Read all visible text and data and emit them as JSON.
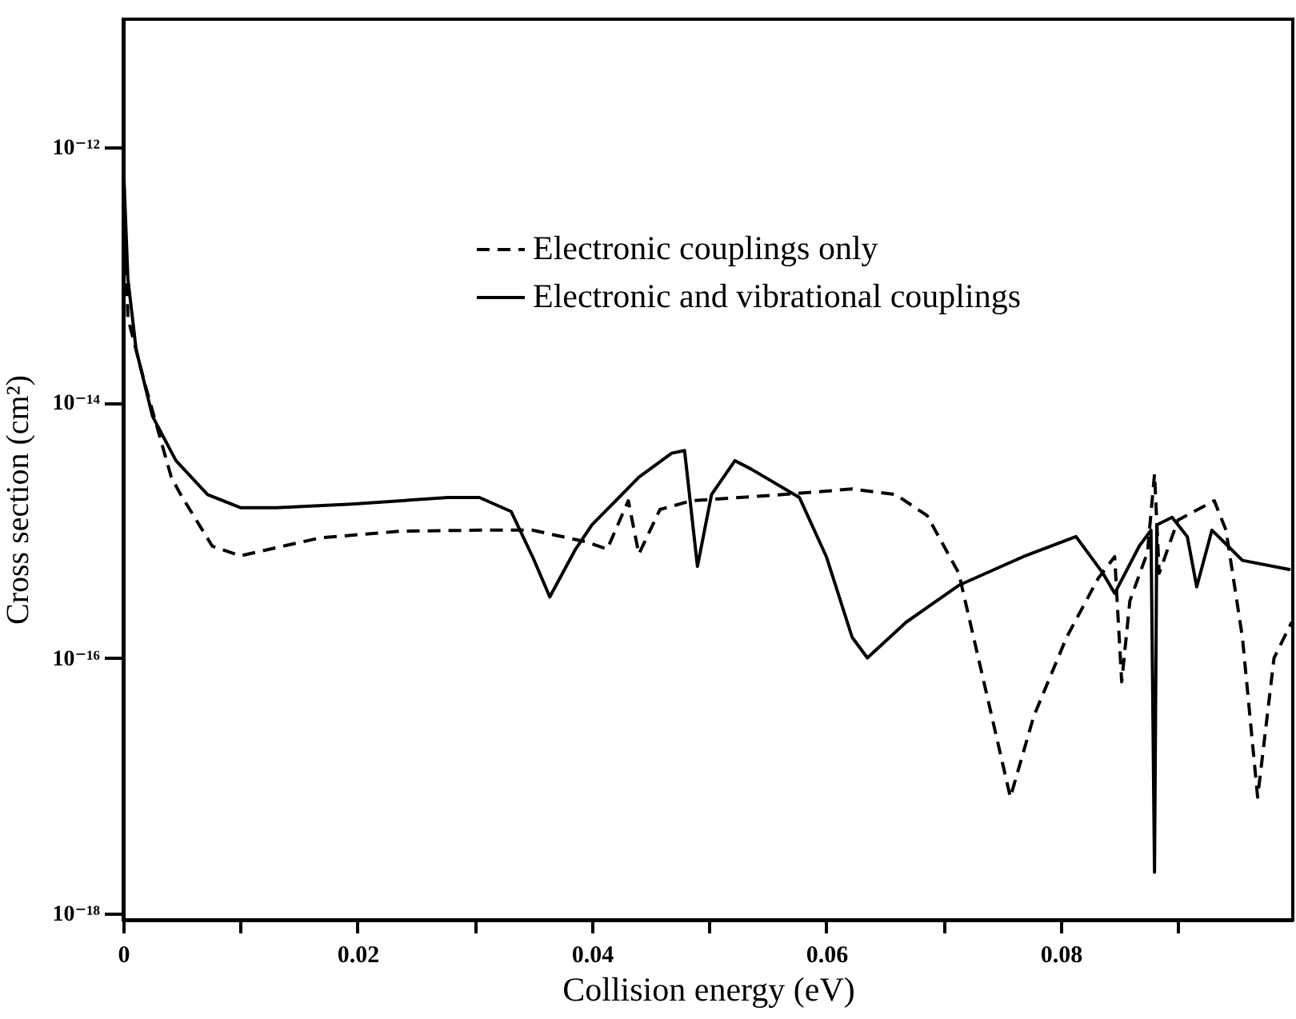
{
  "chart_data": {
    "type": "line",
    "xlabel": "Collision energy (eV)",
    "ylabel": "Cross section (cm²)",
    "log": "y",
    "xlim": [
      0,
      0.0998
    ],
    "ylim": [
      8.9e-19,
      1e-11
    ],
    "xticks": [
      0,
      {
        "value": 0.01,
        "label": null
      },
      0.02,
      {
        "value": 0.03,
        "label": null
      },
      0.04,
      {
        "value": 0.05,
        "label": null
      },
      0.06,
      {
        "value": 0.07,
        "label": null
      },
      0.08,
      {
        "value": 0.09,
        "label": null
      }
    ],
    "yticks": [
      {
        "value": 1e-18,
        "label": "10⁻¹⁸"
      },
      {
        "value": 1e-16,
        "label": "10⁻¹⁶"
      },
      {
        "value": 1e-14,
        "label": "10⁻¹⁴"
      },
      {
        "value": 1e-12,
        "label": "10⁻¹²"
      }
    ],
    "grid": false,
    "legend": "top right",
    "marker": "none",
    "series": [
      {
        "name": "Electronic couplings only",
        "color": "#000000",
        "line_style": "dashed",
        "x": [
          0,
          0.0004,
          0.0018,
          0.0041,
          0.0049,
          0.0076,
          0.01,
          0.0168,
          0.0236,
          0.0304,
          0.0349,
          0.0395,
          0.0413,
          0.0431,
          0.044,
          0.0458,
          0.0485,
          0.0563,
          0.0622,
          0.0659,
          0.0686,
          0.0713,
          0.0736,
          0.0757,
          0.0777,
          0.0805,
          0.0832,
          0.0846,
          0.0852,
          0.0859,
          0.0874,
          0.088,
          0.0884,
          0.09,
          0.0931,
          0.0941,
          0.0955,
          0.0968,
          0.0982,
          0.0997
        ],
        "values": [
          8.1e-13,
          4.6e-14,
          1.45e-14,
          2.6e-15,
          1.9e-15,
          7.5e-16,
          6.3e-16,
          8.7e-16,
          9.8e-16,
          1e-15,
          1e-15,
          8.1e-16,
          7.1e-16,
          1.7e-15,
          6.5e-16,
          1.45e-15,
          1.7e-15,
          1.9e-15,
          2.1e-15,
          1.9e-15,
          1.3e-15,
          4.6e-16,
          5.6e-17,
          8.1e-18,
          3.5e-17,
          1.45e-16,
          4.2e-16,
          6.2e-16,
          6.5e-17,
          2.8e-16,
          6.7e-16,
          2.75e-15,
          4.6e-16,
          1.2e-15,
          1.7e-15,
          1e-15,
          1.45e-16,
          8.1e-18,
          1e-16,
          1.9e-16
        ]
      },
      {
        "name": "Electronic and vibrational couplings",
        "color": "#000000",
        "line_style": "solid",
        "x": [
          0,
          0.0004,
          0.0011,
          0.0025,
          0.0045,
          0.0072,
          0.01,
          0.0131,
          0.0195,
          0.0277,
          0.0304,
          0.0331,
          0.035,
          0.0364,
          0.0386,
          0.04,
          0.044,
          0.0468,
          0.0479,
          0.049,
          0.0502,
          0.0522,
          0.0536,
          0.0577,
          0.06,
          0.0622,
          0.0635,
          0.0668,
          0.0713,
          0.0768,
          0.0813,
          0.0836,
          0.0846,
          0.0867,
          0.0877,
          0.088,
          0.0882,
          0.0895,
          0.0908,
          0.0916,
          0.0929,
          0.0955,
          0.0996
        ],
        "values": [
          8.1e-13,
          9.3e-14,
          2.6e-14,
          7.8e-15,
          3.5e-15,
          1.9e-15,
          1.5e-15,
          1.5e-15,
          1.6e-15,
          1.8e-15,
          1.8e-15,
          1.4e-15,
          6e-16,
          3e-16,
          7.1e-16,
          1.1e-15,
          2.6e-15,
          4e-15,
          4.2e-15,
          5.2e-16,
          1.9e-15,
          3.5e-15,
          3e-15,
          1.8e-15,
          6.2e-16,
          1.45e-16,
          1e-16,
          1.9e-16,
          3.7e-16,
          6.2e-16,
          8.9e-16,
          4.6e-16,
          3.2e-16,
          7.5e-16,
          1e-15,
          2.1e-18,
          1.1e-15,
          1.26e-15,
          8.9e-16,
          3.6e-16,
          1e-15,
          5.8e-16,
          4.9e-16
        ]
      }
    ]
  }
}
